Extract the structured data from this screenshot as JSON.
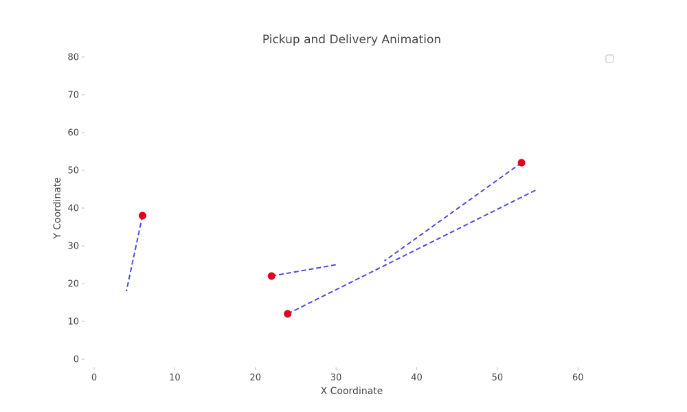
{
  "chart_data": {
    "type": "scatter",
    "title": "Pickup and Delivery Animation",
    "xlabel": "X Coordinate",
    "ylabel": "Y Coordinate",
    "xlim": [
      0,
      65
    ],
    "ylim": [
      0,
      80
    ],
    "xticks": [
      0,
      10,
      20,
      30,
      40,
      50,
      60
    ],
    "yticks": [
      0,
      10,
      20,
      30,
      40,
      50,
      60,
      70,
      80
    ],
    "grid": false,
    "legend": "top-right",
    "points": [
      {
        "x": 6,
        "y": 38
      },
      {
        "x": 22,
        "y": 22
      },
      {
        "x": 24,
        "y": 12
      },
      {
        "x": 53,
        "y": 52
      }
    ],
    "routes": [
      {
        "from": [
          6,
          38
        ],
        "to": [
          4,
          18
        ]
      },
      {
        "from": [
          22,
          22
        ],
        "to": [
          30,
          25
        ]
      },
      {
        "from": [
          24,
          12
        ],
        "to": [
          55,
          45
        ]
      },
      {
        "from": [
          53,
          52
        ],
        "to": [
          36,
          26
        ]
      }
    ],
    "colors": {
      "point": "#e3001b",
      "route": "#4a4ae6",
      "text": "#444444"
    }
  }
}
